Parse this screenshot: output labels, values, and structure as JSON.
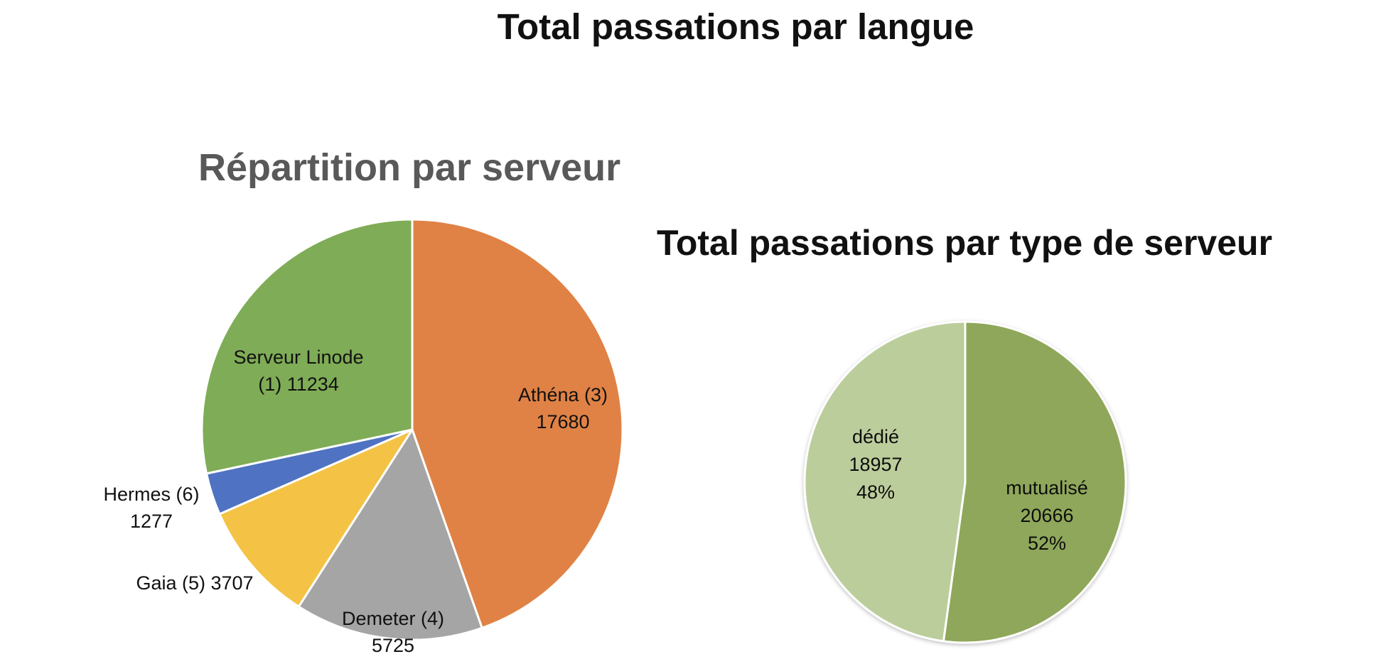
{
  "titles": {
    "main": "Total passations par langue",
    "left": "Répartition par serveur",
    "right": "Total passations par type de serveur"
  },
  "chart_data": [
    {
      "type": "pie",
      "title": "Répartition par serveur",
      "start_angle_deg": 0,
      "direction": "clockwise",
      "slices": [
        {
          "name": "Athéna (3)",
          "value": 17680,
          "color": "#E08245",
          "label_lines": [
            "Athéna (3)",
            "17680"
          ]
        },
        {
          "name": "Demeter (4)",
          "value": 5725,
          "color": "#A5A5A5",
          "label_lines": [
            "Demeter (4)",
            "5725"
          ]
        },
        {
          "name": "Gaia (5)",
          "value": 3707,
          "color": "#F4C245",
          "label_lines": [
            "Gaia (5)  3707"
          ]
        },
        {
          "name": "Hermes (6)",
          "value": 1277,
          "color": "#4F73C2",
          "label_lines": [
            "Hermes (6)",
            "1277"
          ]
        },
        {
          "name": "Serveur Linode (1)",
          "value": 11234,
          "color": "#7FAC56",
          "label_lines": [
            "Serveur Linode",
            "(1)  11234"
          ]
        }
      ]
    },
    {
      "type": "pie",
      "title": "Total passations par type de serveur",
      "start_angle_deg": 0,
      "direction": "clockwise",
      "slices": [
        {
          "name": "mutualisé",
          "value": 20666,
          "percent": "52%",
          "color": "#8FA75A",
          "label_lines": [
            "mutualisé",
            "20666",
            "52%"
          ]
        },
        {
          "name": "dédié",
          "value": 18957,
          "percent": "48%",
          "color": "#BCCD9C",
          "label_lines": [
            "dédié",
            "18957",
            "48%"
          ]
        }
      ]
    }
  ]
}
